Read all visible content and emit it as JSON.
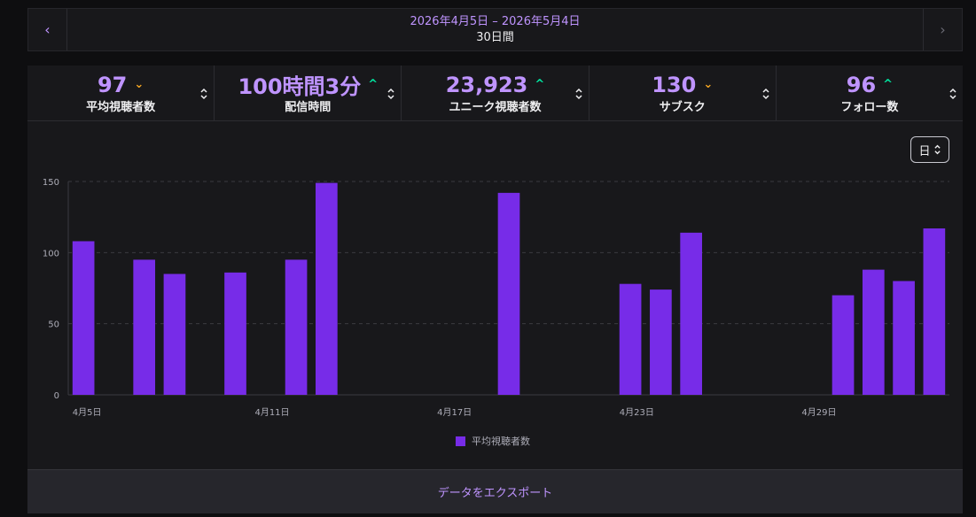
{
  "date_nav": {
    "range": "2026年4月5日 – 2026年5月4日",
    "length": "30日間"
  },
  "tabs": [
    {
      "value": "97",
      "label": "平均視聴者数",
      "trend": "down",
      "active": true
    },
    {
      "value": "100時間3分",
      "label": "配信時間",
      "trend": "up",
      "active": false
    },
    {
      "value": "23,923",
      "label": "ユニーク視聴者数",
      "trend": "up",
      "active": false
    },
    {
      "value": "130",
      "label": "サブスク",
      "trend": "down",
      "active": false
    },
    {
      "value": "96",
      "label": "フォロー数",
      "trend": "up",
      "active": false
    }
  ],
  "granularity": "日",
  "export_label": "データをエクスポート",
  "colors": {
    "bar": "#772ce8",
    "accent": "#bf94ff",
    "trend_up": "#00e5a0",
    "trend_down": "#f5a623"
  },
  "chart_data": {
    "type": "bar",
    "categories": [
      "4月5日",
      "4月6日",
      "4月7日",
      "4月8日",
      "4月9日",
      "4月10日",
      "4月11日",
      "4月12日",
      "4月13日",
      "4月14日",
      "4月15日",
      "4月16日",
      "4月17日",
      "4月18日",
      "4月19日",
      "4月20日",
      "4月21日",
      "4月22日",
      "4月23日",
      "4月24日",
      "4月25日",
      "4月26日",
      "4月27日",
      "4月28日",
      "4月29日",
      "4月30日",
      "5月1日",
      "5月2日",
      "5月3日"
    ],
    "x_tick_labels": [
      "4月5日",
      "4月11日",
      "4月17日",
      "4月23日",
      "4月29日"
    ],
    "series": [
      {
        "name": "平均視聴者数",
        "values": [
          108,
          null,
          95,
          85,
          null,
          86,
          null,
          95,
          149,
          null,
          null,
          null,
          null,
          null,
          142,
          null,
          null,
          null,
          78,
          74,
          114,
          null,
          null,
          null,
          null,
          70,
          88,
          80,
          117
        ]
      }
    ],
    "y_ticks": [
      0,
      50,
      100,
      150
    ],
    "ylim": [
      0,
      150
    ],
    "grid": true,
    "legend": "bottom-center"
  }
}
